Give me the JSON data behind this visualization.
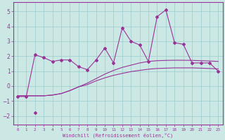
{
  "xlabel": "Windchill (Refroidissement éolien,°C)",
  "bg_color": "#cce8e4",
  "line_color": "#993399",
  "grid_color": "#99cccc",
  "x_ticks": [
    0,
    1,
    2,
    3,
    4,
    5,
    6,
    7,
    8,
    9,
    10,
    11,
    12,
    13,
    14,
    15,
    16,
    17,
    18,
    19,
    20,
    21,
    22,
    23
  ],
  "y_ticks": [
    -2,
    -1,
    0,
    1,
    2,
    3,
    4,
    5
  ],
  "xlim": [
    -0.5,
    23.5
  ],
  "ylim": [
    -2.6,
    5.6
  ],
  "zigzag_x": [
    0,
    1,
    2,
    3,
    4,
    5,
    6,
    7,
    8,
    9,
    10,
    11,
    12,
    13,
    14,
    15,
    16,
    17,
    18,
    19,
    20,
    21,
    22,
    23
  ],
  "zigzag_y": [
    -0.7,
    -0.7,
    2.1,
    1.9,
    1.65,
    1.75,
    1.75,
    1.3,
    1.1,
    1.75,
    2.55,
    1.55,
    3.9,
    3.0,
    2.75,
    1.65,
    4.65,
    5.1,
    2.9,
    2.8,
    1.55,
    1.55,
    1.55,
    1.0
  ],
  "upper_x": [
    0,
    1,
    2,
    3,
    4,
    5,
    6,
    7,
    8,
    9,
    10,
    11,
    12,
    13,
    14,
    15,
    16,
    17,
    18,
    19,
    20,
    21,
    22,
    23
  ],
  "upper_y": [
    -0.65,
    -0.65,
    -0.65,
    -0.65,
    -0.6,
    -0.5,
    -0.3,
    -0.05,
    0.2,
    0.5,
    0.8,
    1.05,
    1.25,
    1.4,
    1.55,
    1.65,
    1.7,
    1.72,
    1.73,
    1.73,
    1.72,
    1.7,
    1.68,
    1.65
  ],
  "lower_x": [
    0,
    1,
    2,
    3,
    4,
    5,
    6,
    7,
    8,
    9,
    10,
    11,
    12,
    13,
    14,
    15,
    16,
    17,
    18,
    19,
    20,
    21,
    22,
    23
  ],
  "lower_y": [
    -0.65,
    -0.65,
    -0.65,
    -0.65,
    -0.6,
    -0.5,
    -0.3,
    -0.05,
    0.1,
    0.35,
    0.55,
    0.72,
    0.85,
    0.97,
    1.05,
    1.13,
    1.18,
    1.2,
    1.22,
    1.22,
    1.22,
    1.2,
    1.18,
    1.15
  ],
  "isolated_x": [
    2
  ],
  "isolated_y": [
    -1.8
  ]
}
